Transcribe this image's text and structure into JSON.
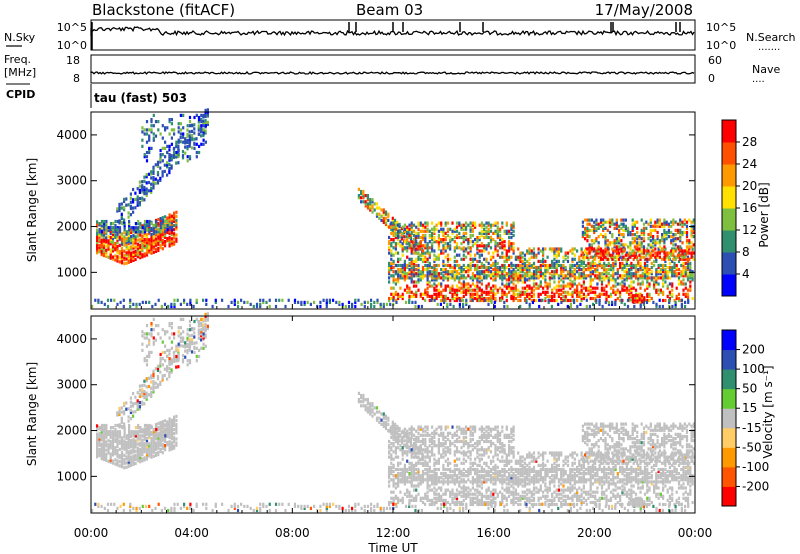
{
  "header": {
    "station": "Blackstone (fitACF)",
    "beam": "Beam 03",
    "date": "17/May/2008"
  },
  "top_panel": {
    "left_label_1": "N.Sky",
    "left_label_2": "Freq.",
    "left_label_3": "[MHz]",
    "left_label_4": "CPID",
    "right_label_1": "N.Search",
    "right_label_2": "Nave",
    "nsky_ticks": [
      "10^5",
      "10^0"
    ],
    "nsearch_ticks": [
      "10^5",
      "10^0"
    ],
    "freq_ticks": [
      "18",
      "8"
    ],
    "nave_ticks": [
      "60",
      "0"
    ],
    "cpid_text": "tau (fast) 503"
  },
  "chart_data": [
    {
      "type": "heatmap",
      "title": "",
      "xlabel": "Time UT",
      "ylabel": "Slant Range [km]",
      "x_ticks": [
        "00:00",
        "04:00",
        "08:00",
        "12:00",
        "16:00",
        "20:00",
        "00:00"
      ],
      "xlim_hours": [
        0,
        24
      ],
      "ylim": [
        200,
        4500
      ],
      "y_ticks": [
        1000,
        2000,
        3000,
        4000
      ],
      "colorbar": {
        "label": "Power [dB]",
        "ticks": [
          "28",
          "24",
          "20",
          "16",
          "12",
          "8",
          "4"
        ],
        "colors": [
          "#0000ff",
          "#2d4fb4",
          "#2f8f6f",
          "#7fbf3f",
          "#ffe000",
          "#ff9900",
          "#ff5000",
          "#ff0000"
        ]
      },
      "regions": [
        {
          "t0": 0.2,
          "t1": 3.3,
          "r0": 1100,
          "r1": 2100,
          "power": "high"
        },
        {
          "t0": 1.0,
          "t1": 4.6,
          "r0": 2000,
          "r1": 4400,
          "power": "low"
        },
        {
          "t0": 10.6,
          "t1": 24.0,
          "r0": 300,
          "r1": 2700,
          "power": "mixed"
        }
      ]
    },
    {
      "type": "heatmap",
      "title": "",
      "xlabel": "Time UT",
      "ylabel": "Slant Range [km]",
      "x_ticks": [
        "00:00",
        "04:00",
        "08:00",
        "12:00",
        "16:00",
        "20:00",
        "00:00"
      ],
      "xlim_hours": [
        0,
        24
      ],
      "ylim": [
        200,
        4500
      ],
      "y_ticks": [
        1000,
        2000,
        3000,
        4000
      ],
      "colorbar": {
        "label": "Velocity [m s⁻¹]",
        "ticks": [
          "200",
          "100",
          "50",
          "15",
          "-15",
          "-50",
          "-100",
          "-200"
        ],
        "colors": [
          "#ff0000",
          "#ff5500",
          "#ff9900",
          "#ffcc66",
          "#c0c0c0",
          "#66cc33",
          "#2f8f6f",
          "#2d4fb4",
          "#0000ff"
        ]
      }
    }
  ],
  "colors": {
    "axis": "#000000",
    "ground_scatter": "#c0c0c0"
  }
}
